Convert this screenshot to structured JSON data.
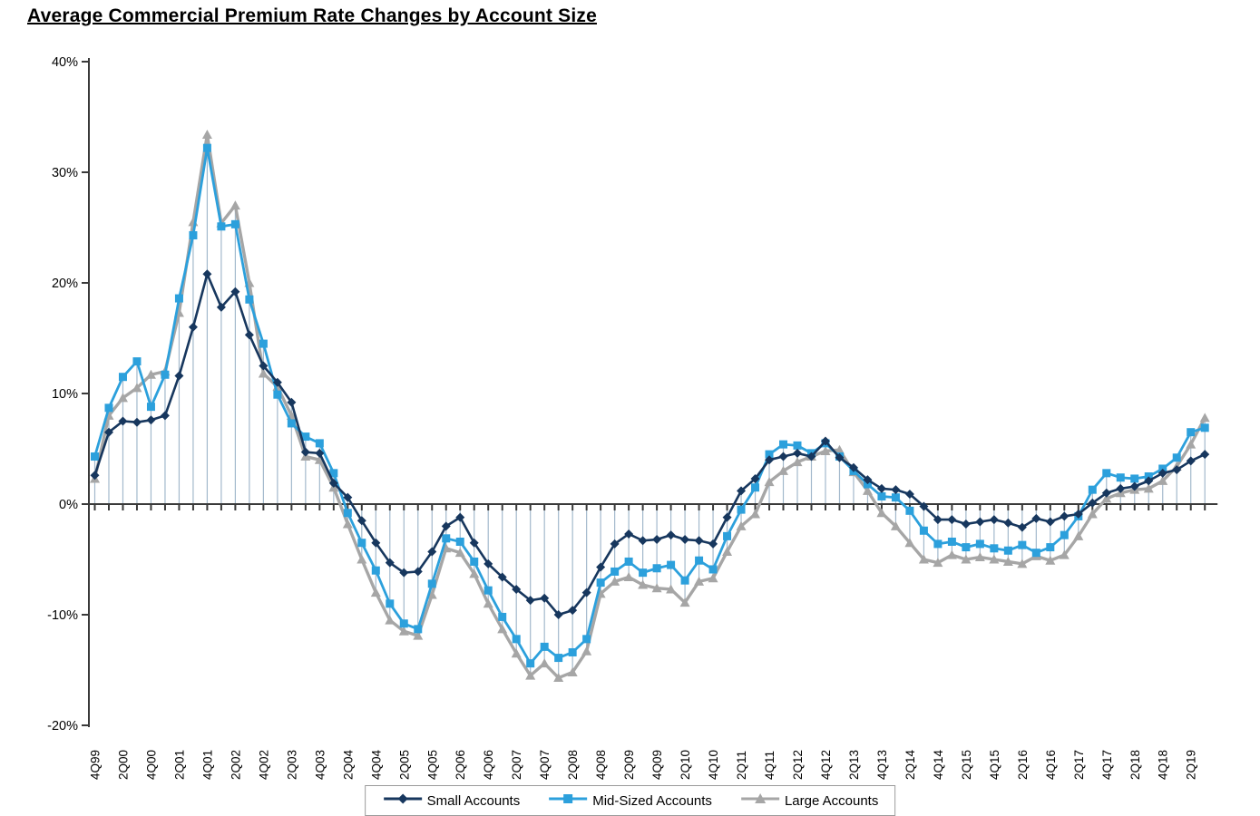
{
  "title": "Average Commercial Premium Rate Changes by Account Size",
  "chart_data": {
    "type": "line",
    "title": "Average Commercial Premium Rate Changes by Account Size",
    "unit": "%",
    "legend_position": "bottom",
    "gridlines": false,
    "drop_lines": true,
    "drop_line_color": "#a3b9cc",
    "axis_color": "#3a3a3a",
    "x_labels_shown_every": 2,
    "y_axis": {
      "min": -20,
      "max": 40,
      "ticks": [
        {
          "label": "40%",
          "value": 40
        },
        {
          "label": "30%",
          "value": 30
        },
        {
          "label": "20%",
          "value": 20
        },
        {
          "label": "10%",
          "value": 10
        },
        {
          "label": "0%",
          "value": 0
        },
        {
          "label": "-10%",
          "value": -10
        },
        {
          "label": "-20%",
          "value": -20
        }
      ]
    },
    "categories": [
      "4Q99",
      "1Q00",
      "2Q00",
      "3Q00",
      "4Q00",
      "1Q01",
      "2Q01",
      "3Q01",
      "4Q01",
      "1Q02",
      "2Q02",
      "3Q02",
      "4Q02",
      "1Q03",
      "2Q03",
      "3Q03",
      "4Q03",
      "1Q04",
      "2Q04",
      "3Q04",
      "4Q04",
      "1Q05",
      "2Q05",
      "3Q05",
      "4Q05",
      "1Q06",
      "2Q06",
      "3Q06",
      "4Q06",
      "1Q07",
      "2Q07",
      "3Q07",
      "4Q07",
      "1Q08",
      "2Q08",
      "3Q08",
      "4Q08",
      "1Q09",
      "2Q09",
      "3Q09",
      "4Q09",
      "1Q10",
      "2Q10",
      "3Q10",
      "4Q10",
      "1Q11",
      "2Q11",
      "3Q11",
      "4Q11",
      "1Q12",
      "2Q12",
      "3Q12",
      "4Q12",
      "1Q13",
      "2Q13",
      "3Q13",
      "4Q13",
      "1Q14",
      "2Q14",
      "3Q14",
      "4Q14",
      "1Q15",
      "2Q15",
      "3Q15",
      "4Q15",
      "1Q16",
      "2Q16",
      "3Q16",
      "4Q16",
      "1Q17",
      "2Q17",
      "3Q17",
      "4Q17",
      "1Q18",
      "2Q18",
      "3Q18",
      "4Q18",
      "1Q19",
      "2Q19",
      "3Q19"
    ],
    "series": [
      {
        "name": "Small Accounts",
        "marker": "diamond",
        "color": "#17375e",
        "values": [
          2.6,
          6.5,
          7.5,
          7.4,
          7.6,
          8.0,
          11.6,
          16.0,
          20.8,
          17.8,
          19.2,
          15.3,
          12.5,
          11.0,
          9.2,
          4.7,
          4.6,
          1.9,
          0.6,
          -1.5,
          -3.5,
          -5.3,
          -6.2,
          -6.1,
          -4.3,
          -2.0,
          -1.2,
          -3.5,
          -5.4,
          -6.6,
          -7.7,
          -8.7,
          -8.5,
          -10.0,
          -9.6,
          -8.0,
          -5.7,
          -3.6,
          -2.7,
          -3.3,
          -3.2,
          -2.8,
          -3.2,
          -3.3,
          -3.6,
          -1.2,
          1.2,
          2.3,
          4.0,
          4.3,
          4.6,
          4.3,
          5.7,
          4.2,
          3.3,
          2.2,
          1.4,
          1.3,
          0.9,
          -0.2,
          -1.4,
          -1.4,
          -1.8,
          -1.6,
          -1.4,
          -1.7,
          -2.1,
          -1.3,
          -1.6,
          -1.1,
          -0.9,
          0.1,
          1.0,
          1.4,
          1.6,
          2.1,
          2.8,
          3.1,
          3.9,
          4.5
        ]
      },
      {
        "name": "Mid-Sized Accounts",
        "marker": "square",
        "color": "#2ca0dc",
        "values": [
          4.3,
          8.7,
          11.5,
          12.9,
          8.8,
          11.7,
          18.6,
          24.3,
          32.2,
          25.1,
          25.3,
          18.5,
          14.5,
          9.9,
          7.3,
          6.1,
          5.5,
          2.8,
          -0.8,
          -3.5,
          -6.0,
          -9.0,
          -10.8,
          -11.3,
          -7.2,
          -3.1,
          -3.4,
          -5.2,
          -7.8,
          -10.2,
          -12.2,
          -14.4,
          -12.9,
          -13.9,
          -13.4,
          -12.2,
          -7.1,
          -6.1,
          -5.2,
          -6.2,
          -5.8,
          -5.5,
          -6.9,
          -5.1,
          -5.9,
          -2.9,
          -0.5,
          1.5,
          4.5,
          5.4,
          5.3,
          4.6,
          5.5,
          4.3,
          3.0,
          1.8,
          0.7,
          0.6,
          -0.6,
          -2.4,
          -3.6,
          -3.4,
          -3.9,
          -3.6,
          -4.0,
          -4.2,
          -3.7,
          -4.4,
          -3.9,
          -2.8,
          -1.1,
          1.3,
          2.8,
          2.4,
          2.3,
          2.5,
          3.2,
          4.2,
          6.5,
          6.9
        ]
      },
      {
        "name": "Large Accounts",
        "marker": "triangle",
        "color": "#a6a6a6",
        "values": [
          2.3,
          8.0,
          9.6,
          10.5,
          11.7,
          12.0,
          17.3,
          25.5,
          33.4,
          25.4,
          27.0,
          20.0,
          11.8,
          10.6,
          8.0,
          4.3,
          4.0,
          1.5,
          -1.8,
          -5.0,
          -8.0,
          -10.5,
          -11.5,
          -11.9,
          -8.2,
          -4.0,
          -4.4,
          -6.3,
          -9.0,
          -11.3,
          -13.5,
          -15.5,
          -14.4,
          -15.7,
          -15.2,
          -13.3,
          -8.1,
          -7.0,
          -6.6,
          -7.3,
          -7.6,
          -7.7,
          -8.9,
          -7.0,
          -6.7,
          -4.3,
          -2.0,
          -0.9,
          2.0,
          3.0,
          3.8,
          4.3,
          4.8,
          4.9,
          2.9,
          1.2,
          -0.8,
          -2.0,
          -3.5,
          -5.0,
          -5.3,
          -4.6,
          -5.0,
          -4.8,
          -5.0,
          -5.2,
          -5.4,
          -4.7,
          -5.1,
          -4.6,
          -2.9,
          -0.9,
          0.5,
          1.0,
          1.3,
          1.4,
          2.1,
          3.4,
          5.4,
          7.8
        ]
      }
    ]
  }
}
